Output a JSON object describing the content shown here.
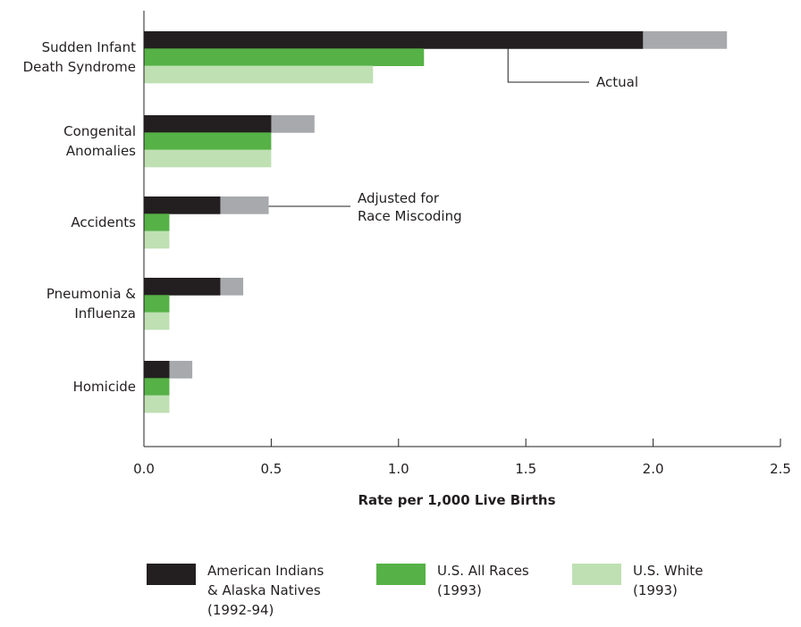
{
  "chart_data": {
    "type": "bar",
    "orientation": "horizontal",
    "categories": [
      [
        "Sudden Infant",
        "Death Syndrome"
      ],
      [
        "Congenital",
        "Anomalies"
      ],
      [
        "Accidents"
      ],
      [
        "Pneumonia &",
        "Influenza"
      ],
      [
        "Homicide"
      ]
    ],
    "series": [
      {
        "name": "American Indians & Alaska Natives (1992-94)",
        "legend_lines": [
          "American Indians",
          "& Alaska Natives",
          "(1992-94)"
        ],
        "color": "#231f20",
        "values": [
          1.96,
          0.5,
          0.3,
          0.3,
          0.1
        ],
        "adjusted_values": [
          2.29,
          0.67,
          0.49,
          0.39,
          0.19
        ],
        "adjusted_color": "#a7a9ac"
      },
      {
        "name": "U.S. All Races (1993)",
        "legend_lines": [
          "U.S. All Races",
          "(1993)"
        ],
        "color": "#56b146",
        "values": [
          1.1,
          0.5,
          0.1,
          0.1,
          0.1
        ]
      },
      {
        "name": "U.S. White (1993)",
        "legend_lines": [
          "U.S. White",
          "(1993)"
        ],
        "color": "#bfe0b3",
        "values": [
          0.9,
          0.5,
          0.1,
          0.1,
          0.1
        ]
      }
    ],
    "xticks": [
      "0.0",
      "0.5",
      "1.0",
      "1.5",
      "2.0",
      "2.5"
    ],
    "xlim": [
      0,
      2.5
    ],
    "xlabel": "Rate per 1,000 Live Births",
    "ylabel": "",
    "title": "",
    "grid": false,
    "legend_position": "bottom",
    "annotations": [
      {
        "lines": [
          "Actual"
        ],
        "category_index": 0,
        "x": 1.43
      },
      {
        "lines": [
          "Adjusted for",
          "Race Miscoding"
        ],
        "category_index": 2,
        "x": 0.49
      }
    ]
  }
}
